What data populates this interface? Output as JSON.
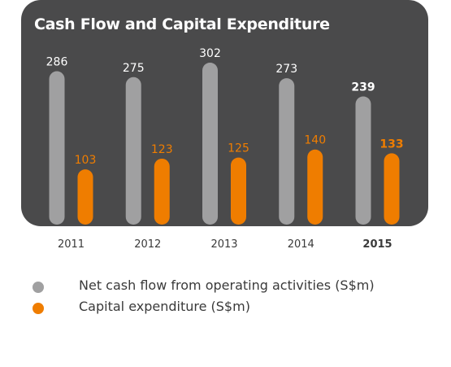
{
  "colors": {
    "panel": "#4a4a4b",
    "net_cash_flow": "#a0a0a1",
    "capex": "#ef7d00",
    "title": "#ffffff",
    "value_label_light": "#ffffff",
    "year_label": "#3a3a3a"
  },
  "chart_data": {
    "type": "bar",
    "title": "Cash Flow and Capital Expenditure",
    "categories": [
      "2011",
      "2012",
      "2013",
      "2014",
      "2015"
    ],
    "highlight_category": "2015",
    "series": [
      {
        "name": "Net cash flow from operating activities (S$m)",
        "values": [
          286,
          275,
          302,
          273,
          239
        ],
        "color": "#a0a0a1"
      },
      {
        "name": "Capital expenditure (S$m)",
        "values": [
          103,
          123,
          125,
          140,
          133
        ],
        "color": "#ef7d00"
      }
    ],
    "ylim": [
      0,
      302
    ],
    "grid": false,
    "legend_position": "bottom-left",
    "xlabel": "",
    "ylabel": ""
  }
}
